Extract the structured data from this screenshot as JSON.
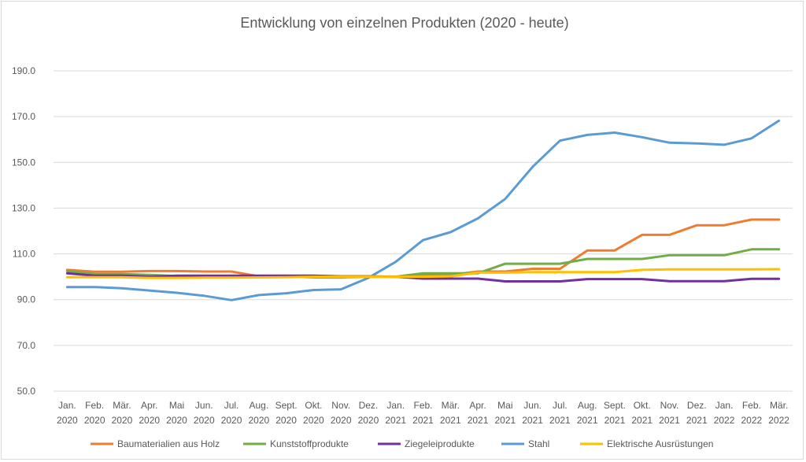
{
  "chart_data": {
    "type": "line",
    "title": "Entwicklung von einzelnen Produkten (2020 - heute)",
    "xlabel": "",
    "ylabel": "",
    "ylim": [
      50,
      190
    ],
    "yticks": [
      "50.0",
      "70.0",
      "90.0",
      "110.0",
      "130.0",
      "150.0",
      "170.0",
      "190.0"
    ],
    "ytick_values": [
      50,
      70,
      90,
      110,
      130,
      150,
      170,
      190
    ],
    "grid": true,
    "legend_position": "bottom",
    "categories": [
      [
        "Jan.",
        "2020"
      ],
      [
        "Feb.",
        "2020"
      ],
      [
        "Mär.",
        "2020"
      ],
      [
        "Apr.",
        "2020"
      ],
      [
        "Mai",
        "2020"
      ],
      [
        "Jun.",
        "2020"
      ],
      [
        "Jul.",
        "2020"
      ],
      [
        "Aug.",
        "2020"
      ],
      [
        "Sept.",
        "2020"
      ],
      [
        "Okt.",
        "2020"
      ],
      [
        "Nov.",
        "2020"
      ],
      [
        "Dez.",
        "2020"
      ],
      [
        "Jan.",
        "2021"
      ],
      [
        "Feb.",
        "2021"
      ],
      [
        "Mär.",
        "2021"
      ],
      [
        "Apr.",
        "2021"
      ],
      [
        "Mai",
        "2021"
      ],
      [
        "Jun.",
        "2021"
      ],
      [
        "Jul.",
        "2021"
      ],
      [
        "Aug.",
        "2021"
      ],
      [
        "Sept.",
        "2021"
      ],
      [
        "Okt.",
        "2021"
      ],
      [
        "Nov.",
        "2021"
      ],
      [
        "Dez.",
        "2021"
      ],
      [
        "Jan.",
        "2022"
      ],
      [
        "Feb.",
        "2022"
      ],
      [
        "Mär.",
        "2022"
      ]
    ],
    "series": [
      {
        "name": "Baumaterialien aus Holz",
        "color": "#ED7D31",
        "values": [
          103.0,
          102.2,
          102.2,
          102.5,
          102.5,
          102.3,
          102.3,
          100.2,
          100.2,
          99.7,
          99.7,
          100.0,
          100.0,
          100.8,
          100.8,
          102.3,
          102.3,
          103.5,
          103.5,
          111.5,
          111.5,
          118.3,
          118.3,
          122.5,
          122.5,
          125.0,
          125.0
        ]
      },
      {
        "name": "Kunststoffprodukte",
        "color": "#70AD47",
        "values": [
          102.5,
          101.2,
          101.2,
          100.8,
          100.3,
          100.3,
          100.3,
          100.2,
          100.2,
          100.2,
          100.0,
          100.0,
          100.0,
          101.5,
          101.5,
          101.5,
          105.7,
          105.7,
          105.7,
          107.8,
          107.8,
          107.8,
          109.4,
          109.4,
          109.4,
          112.0,
          112.0
        ]
      },
      {
        "name": "Ziegeleiprodukte",
        "color": "#7030A0",
        "values": [
          101.5,
          100.5,
          100.5,
          100.0,
          100.5,
          100.5,
          100.5,
          100.5,
          100.5,
          100.5,
          100.2,
          100.2,
          100.0,
          99.2,
          99.2,
          99.2,
          98.0,
          98.0,
          98.0,
          99.0,
          99.0,
          99.0,
          98.1,
          98.1,
          98.1,
          99.1,
          99.1
        ]
      },
      {
        "name": "Stahl",
        "color": "#5B9BD5",
        "values": [
          95.5,
          95.5,
          95.0,
          94.0,
          93.0,
          91.7,
          89.8,
          92.0,
          92.8,
          94.2,
          94.5,
          99.5,
          106.5,
          116.0,
          119.5,
          125.5,
          134.0,
          148.0,
          159.5,
          162.0,
          163.0,
          161.0,
          158.6,
          158.3,
          157.7,
          160.5,
          168.2
        ]
      },
      {
        "name": "Elektrische Ausrüstungen",
        "color": "#FFC000",
        "values": [
          99.8,
          99.8,
          99.8,
          99.5,
          99.5,
          99.6,
          99.6,
          99.7,
          99.8,
          100.0,
          100.0,
          100.0,
          100.0,
          100.0,
          100.2,
          101.8,
          101.8,
          102.0,
          102.0,
          102.0,
          102.0,
          103.0,
          103.2,
          103.2,
          103.2,
          103.2,
          103.3
        ]
      }
    ]
  }
}
